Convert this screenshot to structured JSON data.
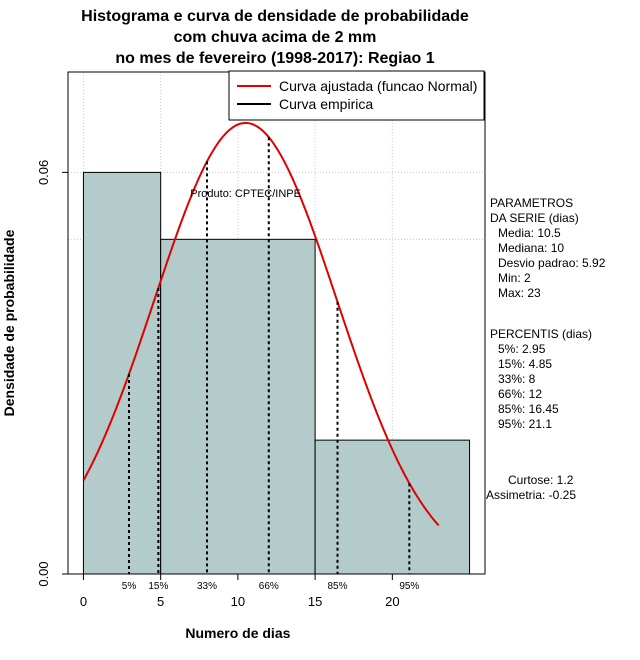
{
  "chart_data": {
    "type": "bar",
    "title_lines": [
      "Histograma e curva de densidade de probabilidade",
      "com chuva acima de 2 mm",
      "no mes de fevereiro (1998-2017): Regiao 1"
    ],
    "xlabel": "Numero de dias",
    "ylabel": "Densidade de probabilidade",
    "xlim": [
      -1,
      26
    ],
    "ylim": [
      0,
      0.075
    ],
    "x_ticks": [
      0,
      5,
      10,
      15,
      20
    ],
    "y_ticks": [
      0.0,
      0.06
    ],
    "y_tick_labels": [
      "0.00",
      "0.06"
    ],
    "grid": true,
    "histogram": {
      "bins": [
        {
          "from": 0,
          "to": 5,
          "density": 0.06
        },
        {
          "from": 5,
          "to": 15,
          "density": 0.05
        },
        {
          "from": 15,
          "to": 25,
          "density": 0.02
        }
      ],
      "fill": "#b4cbcb"
    },
    "normal_curve": {
      "mean": 10.5,
      "sd": 5.92,
      "x_from": 0,
      "x_to": 23,
      "color": "#e00000"
    },
    "percentiles": [
      {
        "label": "5%",
        "x": 2.95
      },
      {
        "label": "15%",
        "x": 4.85
      },
      {
        "label": "33%",
        "x": 8
      },
      {
        "label": "66%",
        "x": 12
      },
      {
        "label": "85%",
        "x": 16.45
      },
      {
        "label": "95%",
        "x": 21.1
      }
    ],
    "legend": {
      "placement": "top-right",
      "items": [
        {
          "label": "Curva ajustada (funcao Normal)",
          "color": "#e00000"
        },
        {
          "label": "Curva empirica",
          "color": "#000000"
        }
      ]
    },
    "annotation": "Produto: CPTEC/INPE"
  },
  "side_panel": {
    "params_title_1": "PARAMETROS",
    "params_title_2": "DA SERIE (dias)",
    "media": "Media: 10.5",
    "mediana": "Mediana: 10",
    "desvio": "Desvio padrao: 5.92",
    "min": "Min: 2",
    "max": "Max: 23",
    "percentis_title": "PERCENTIS (dias)",
    "p5": "5%: 2.95",
    "p15": "15%: 4.85",
    "p33": "33%: 8",
    "p66": "66%: 12",
    "p85": "85%: 16.45",
    "p95": "95%: 21.1",
    "curtose": "Curtose: 1.2",
    "assimetria": "Assimetria: -0.25"
  }
}
